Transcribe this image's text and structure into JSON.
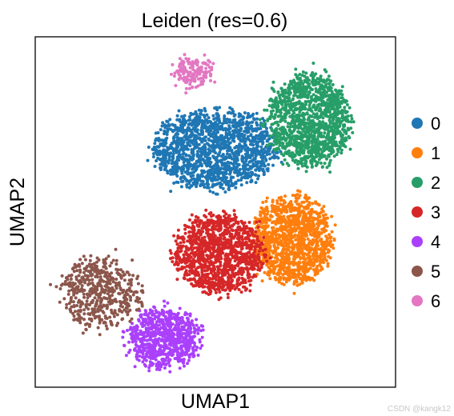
{
  "chart_data": {
    "type": "scatter",
    "title": "Leiden (res=0.6)",
    "xlabel": "UMAP1",
    "ylabel": "UMAP2",
    "xlim": [
      0,
      10
    ],
    "ylim": [
      0,
      10
    ],
    "grid": false,
    "legend_position": "right",
    "legend": [
      {
        "name": "0",
        "color": "#1f77b4"
      },
      {
        "name": "1",
        "color": "#ff7f0e"
      },
      {
        "name": "2",
        "color": "#279e68"
      },
      {
        "name": "3",
        "color": "#d62728"
      },
      {
        "name": "4",
        "color": "#aa40fc"
      },
      {
        "name": "5",
        "color": "#8c564b"
      },
      {
        "name": "6",
        "color": "#e377c2"
      }
    ],
    "clusters": [
      {
        "name": "0",
        "color": "#1f77b4",
        "center": [
          5.0,
          6.8
        ],
        "spread": [
          1.7,
          1.1
        ],
        "count": 1500
      },
      {
        "name": "1",
        "color": "#ff7f0e",
        "center": [
          7.1,
          4.2
        ],
        "spread": [
          1.1,
          1.2
        ],
        "count": 1300
      },
      {
        "name": "2",
        "color": "#279e68",
        "center": [
          7.6,
          7.6
        ],
        "spread": [
          1.1,
          1.3
        ],
        "count": 1300
      },
      {
        "name": "3",
        "color": "#d62728",
        "center": [
          5.1,
          3.8
        ],
        "spread": [
          1.2,
          1.1
        ],
        "count": 1200
      },
      {
        "name": "4",
        "color": "#aa40fc",
        "center": [
          3.6,
          1.4
        ],
        "spread": [
          0.95,
          0.8
        ],
        "count": 800
      },
      {
        "name": "5",
        "color": "#8c564b",
        "center": [
          1.8,
          2.7
        ],
        "spread": [
          1.1,
          1.0
        ],
        "count": 500
      },
      {
        "name": "6",
        "color": "#e377c2",
        "center": [
          4.4,
          9.0
        ],
        "spread": [
          0.55,
          0.4
        ],
        "count": 150
      }
    ]
  },
  "watermark": "CSDN @kangk12"
}
